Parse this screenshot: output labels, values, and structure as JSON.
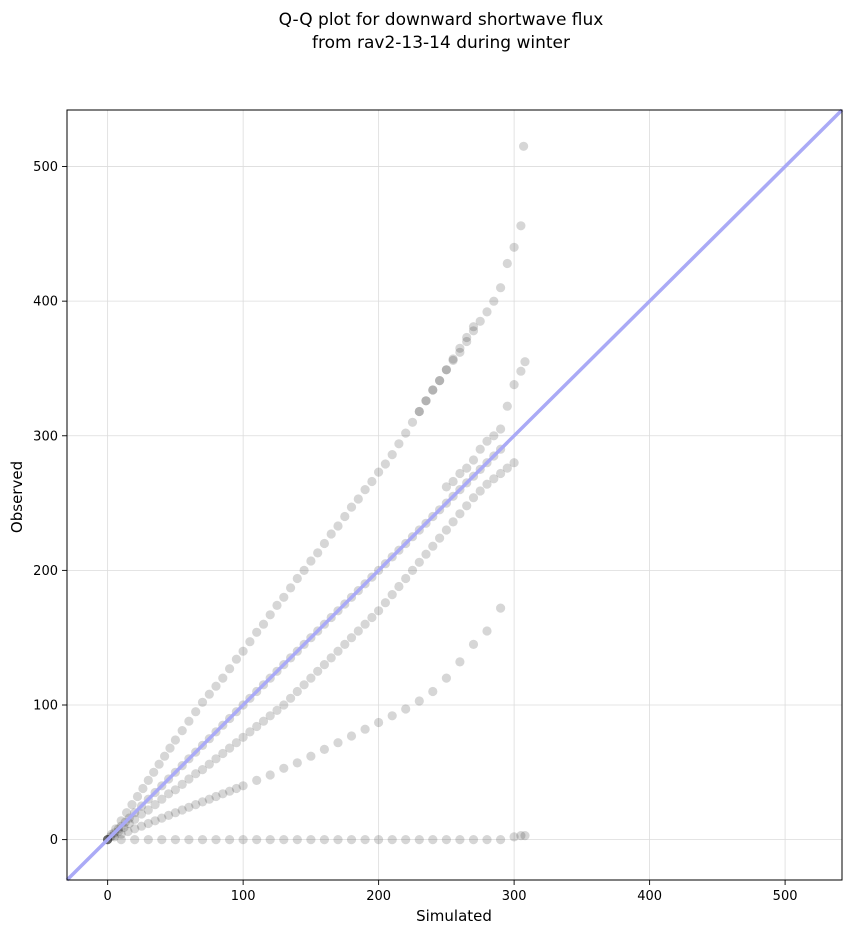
{
  "chart_data": {
    "type": "scatter",
    "title": [
      "Q-Q plot for downward shortwave flux",
      "from rav2-13-14 during winter"
    ],
    "xlabel": "Simulated",
    "ylabel": "Observed",
    "xlim": [
      -30,
      542
    ],
    "ylim": [
      -30,
      542
    ],
    "xticks": [
      0,
      100,
      200,
      300,
      400,
      500
    ],
    "yticks": [
      0,
      100,
      200,
      300,
      400,
      500
    ],
    "grid": true,
    "reference_line": {
      "from": [
        -30,
        -30
      ],
      "to": [
        542,
        542
      ],
      "color": "#aaaaf6"
    },
    "point_color": "#000000",
    "point_opacity": 0.16,
    "series": [
      {
        "x": [
          0,
          2,
          5,
          8,
          10,
          13,
          16,
          20,
          25,
          30,
          35,
          40,
          45,
          50,
          55,
          60,
          65,
          70,
          75,
          80,
          85,
          90,
          95,
          100,
          105,
          110,
          115,
          120,
          125,
          130,
          135,
          140,
          145,
          150,
          155,
          160,
          165,
          170,
          175,
          180,
          185,
          190,
          195,
          200,
          205,
          210,
          215,
          220,
          225,
          230,
          235,
          240,
          245,
          250,
          255,
          260,
          265,
          270,
          275,
          280,
          285,
          290
        ],
        "y": [
          0,
          2,
          5,
          8,
          10,
          13,
          16,
          20,
          25,
          30,
          35,
          40,
          45,
          50,
          55,
          60,
          65,
          70,
          75,
          80,
          85,
          90,
          95,
          100,
          105,
          110,
          115,
          120,
          125,
          130,
          135,
          140,
          145,
          150,
          155,
          160,
          165,
          170,
          175,
          180,
          185,
          190,
          195,
          200,
          205,
          210,
          215,
          220,
          225,
          230,
          235,
          240,
          245,
          250,
          255,
          260,
          265,
          270,
          275,
          280,
          285,
          290
        ]
      },
      {
        "x": [
          0,
          3,
          6,
          10,
          14,
          18,
          22,
          26,
          30,
          34,
          38,
          42,
          46,
          50,
          55,
          60,
          65,
          70,
          75,
          80,
          85,
          90,
          95,
          100,
          105,
          110,
          115,
          120,
          125,
          130,
          135,
          140,
          145,
          150,
          155,
          160,
          165,
          170,
          175,
          180,
          185,
          190,
          195,
          200,
          205,
          210,
          215,
          220,
          225,
          230,
          235,
          240,
          245,
          250,
          255,
          260,
          265,
          270
        ],
        "y": [
          0,
          4,
          8,
          14,
          20,
          26,
          32,
          38,
          44,
          50,
          56,
          62,
          68,
          74,
          81,
          88,
          95,
          102,
          108,
          114,
          120,
          127,
          134,
          140,
          147,
          154,
          160,
          167,
          174,
          180,
          187,
          194,
          200,
          207,
          213,
          220,
          227,
          233,
          240,
          247,
          253,
          260,
          266,
          273,
          279,
          286,
          294,
          302,
          310,
          318,
          326,
          334,
          341,
          349,
          357,
          365,
          373,
          381
        ]
      },
      {
        "x": [
          230,
          235,
          240,
          245,
          250,
          255,
          260,
          265,
          270,
          275,
          280,
          285,
          290,
          295,
          300,
          305
        ],
        "y": [
          318,
          326,
          334,
          341,
          349,
          356,
          362,
          370,
          378,
          385,
          392,
          400,
          410,
          428,
          440,
          456
        ]
      },
      {
        "x": [
          0,
          4,
          8,
          12,
          16,
          20,
          25,
          30,
          35,
          40,
          45,
          50,
          55,
          60,
          65,
          70,
          75,
          80,
          85,
          90,
          95,
          100,
          105,
          110,
          115,
          120,
          125,
          130,
          135,
          140,
          145,
          150,
          155,
          160,
          165,
          170,
          175,
          180,
          185,
          190,
          195,
          200,
          205,
          210,
          215,
          220,
          225,
          230,
          235,
          240,
          245,
          250,
          255,
          260,
          265,
          270,
          275,
          280,
          285,
          290,
          295,
          300
        ],
        "y": [
          0,
          3,
          6,
          9,
          12,
          15,
          19,
          22,
          26,
          30,
          34,
          37,
          41,
          45,
          49,
          52,
          56,
          60,
          64,
          68,
          72,
          76,
          80,
          84,
          88,
          92,
          96,
          100,
          105,
          110,
          115,
          120,
          125,
          130,
          135,
          140,
          145,
          150,
          155,
          160,
          165,
          170,
          176,
          182,
          188,
          194,
          200,
          206,
          212,
          218,
          224,
          230,
          236,
          242,
          248,
          254,
          259,
          264,
          268,
          272,
          276,
          280
        ]
      },
      {
        "x": [
          250,
          255,
          260,
          265,
          270,
          275,
          280,
          285,
          290,
          295,
          300,
          305,
          308
        ],
        "y": [
          262,
          266,
          272,
          276,
          282,
          290,
          296,
          300,
          305,
          322,
          338,
          348,
          355
        ]
      },
      {
        "x": [
          0,
          5,
          10,
          15,
          20,
          25,
          30,
          35,
          40,
          45,
          50,
          55,
          60,
          65,
          70,
          75,
          80,
          85,
          90,
          95,
          100,
          110,
          120,
          130,
          140,
          150,
          160,
          170,
          180,
          190,
          200,
          210,
          220,
          230,
          240,
          250,
          260,
          270,
          280,
          290
        ],
        "y": [
          0,
          2,
          4,
          6,
          8,
          10,
          12,
          14,
          16,
          18,
          20,
          22,
          24,
          26,
          28,
          30,
          32,
          34,
          36,
          38,
          40,
          44,
          48,
          53,
          57,
          62,
          67,
          72,
          77,
          82,
          87,
          92,
          97,
          103,
          110,
          120,
          132,
          145,
          155,
          172
        ]
      },
      {
        "x": [
          0,
          10,
          20,
          30,
          40,
          50,
          60,
          70,
          80,
          90,
          100,
          110,
          120,
          130,
          140,
          150,
          160,
          170,
          180,
          190,
          200,
          210,
          220,
          230,
          240,
          250,
          260,
          270,
          280,
          290,
          300,
          305,
          308
        ],
        "y": [
          0,
          0,
          0,
          0,
          0,
          0,
          0,
          0,
          0,
          0,
          0,
          0,
          0,
          0,
          0,
          0,
          0,
          0,
          0,
          0,
          0,
          0,
          0,
          0,
          0,
          0,
          0,
          0,
          0,
          0,
          2,
          3,
          3
        ]
      },
      {
        "x": [
          307
        ],
        "y": [
          515
        ]
      }
    ]
  }
}
